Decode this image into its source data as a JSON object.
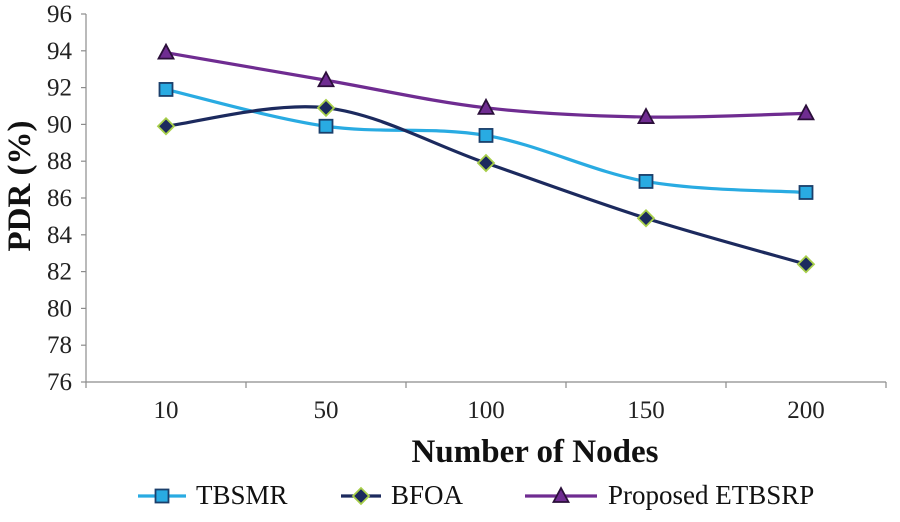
{
  "chart_data": {
    "type": "line",
    "title": "",
    "xlabel": "Number of Nodes",
    "ylabel": "PDR (%)",
    "categories": [
      "10",
      "50",
      "100",
      "150",
      "200"
    ],
    "ylim": [
      76,
      96
    ],
    "yticks": [
      76,
      78,
      80,
      82,
      84,
      86,
      88,
      90,
      92,
      94,
      96
    ],
    "grid": false,
    "legend_position": "bottom",
    "series": [
      {
        "name": "TBSMR",
        "values": [
          91.9,
          89.9,
          89.4,
          86.9,
          86.3
        ],
        "color": "#29abe2",
        "marker": "square",
        "marker_fill": "#29abe2",
        "marker_stroke": "#1b3f6b"
      },
      {
        "name": "BFOA",
        "values": [
          89.9,
          90.9,
          87.9,
          84.9,
          82.4
        ],
        "color": "#1c2a5e",
        "marker": "diamond",
        "marker_fill": "#1c2a5e",
        "marker_stroke": "#a8cf4a"
      },
      {
        "name": "Proposed ETBSRP",
        "values": [
          93.9,
          92.4,
          90.9,
          90.4,
          90.6
        ],
        "color": "#6f2c91",
        "marker": "triangle",
        "marker_fill": "#6f2c91",
        "marker_stroke": "#2b0f3a"
      }
    ]
  }
}
